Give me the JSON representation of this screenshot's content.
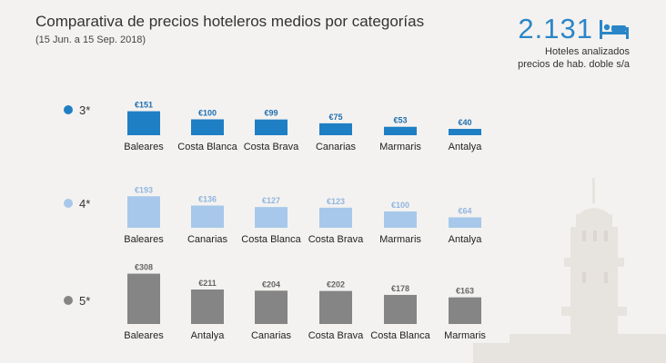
{
  "header": {
    "title": "Comparativa de precios hoteleros medios por categorías",
    "subtitle": "(15 Jun. a 15 Sep. 2018)"
  },
  "stat": {
    "number": "2.131",
    "icon": "bed-icon",
    "line1": "Hoteles analizados",
    "line2": "precios de hab. doble s/a"
  },
  "colors": {
    "accent": "#2a86c8",
    "three_star": "#1f7fc4",
    "four_star": "#a7c8ea",
    "five_star": "#858585"
  },
  "chart_data": [
    {
      "type": "bar",
      "series_label": "3*",
      "color": "#1f7fc4",
      "categories": [
        "Baleares",
        "Costa Blanca",
        "Costa Brava",
        "Canarias",
        "Marmaris",
        "Antalya"
      ],
      "values": [
        151,
        100,
        99,
        75,
        53,
        40
      ],
      "value_labels": [
        "€151",
        "€100",
        "€99",
        "€75",
        "€53",
        "€40"
      ]
    },
    {
      "type": "bar",
      "series_label": "4*",
      "color": "#a7c8ea",
      "categories": [
        "Baleares",
        "Canarias",
        "Costa Blanca",
        "Costa Brava",
        "Marmaris",
        "Antalya"
      ],
      "values": [
        193,
        136,
        127,
        123,
        100,
        64
      ],
      "value_labels": [
        "€193",
        "€136",
        "€127",
        "€123",
        "€100",
        "€64"
      ]
    },
    {
      "type": "bar",
      "series_label": "5*",
      "color": "#858585",
      "categories": [
        "Baleares",
        "Antalya",
        "Canarias",
        "Costa Brava",
        "Costa Blanca",
        "Marmaris"
      ],
      "values": [
        308,
        211,
        204,
        202,
        178,
        163
      ],
      "value_labels": [
        "€308",
        "€211",
        "€204",
        "€202",
        "€178",
        "€163"
      ]
    }
  ]
}
